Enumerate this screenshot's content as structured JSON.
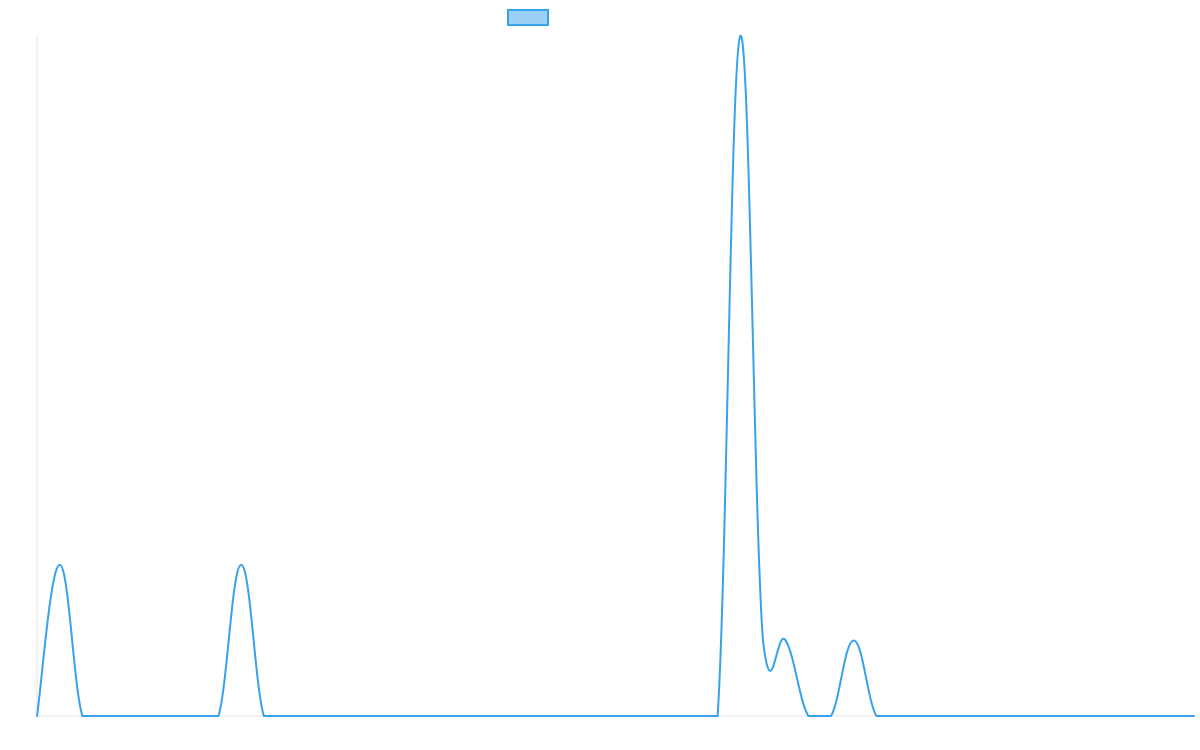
{
  "chart_data": {
    "type": "line",
    "title": "",
    "xlabel": "",
    "ylabel": "",
    "grid": false,
    "legend_position": "top",
    "x": [
      0,
      1,
      2,
      3,
      4,
      5,
      6,
      7,
      8,
      9,
      10,
      11,
      12,
      13,
      14,
      15,
      16,
      17,
      18,
      19,
      20,
      21,
      22,
      23,
      24,
      25,
      26,
      27,
      28,
      29,
      30,
      31,
      32,
      33,
      34,
      35,
      36,
      37,
      38,
      39,
      40,
      41,
      42,
      43,
      44,
      45,
      46,
      47,
      48,
      49,
      50,
      51
    ],
    "xlim": [
      0,
      51
    ],
    "ylim": [
      0,
      9
    ],
    "series": [
      {
        "name": "",
        "color": "#36a2eb",
        "fill_color": "#9ad0f5",
        "values": [
          0,
          2,
          0,
          0,
          0,
          0,
          0,
          0,
          0,
          2,
          0,
          0,
          0,
          0,
          0,
          0,
          0,
          0,
          0,
          0,
          0,
          0,
          0,
          0,
          0,
          0,
          0,
          0,
          0,
          0,
          0,
          9,
          1,
          1,
          0,
          0,
          1,
          0,
          0,
          0,
          0,
          0,
          0,
          0,
          0,
          0,
          0,
          0,
          0,
          0,
          0,
          0
        ]
      }
    ]
  }
}
